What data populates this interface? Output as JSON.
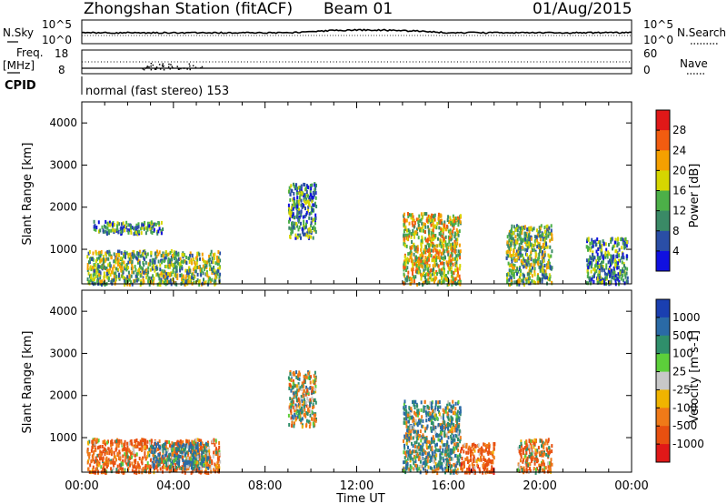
{
  "header": {
    "station": "Zhongshan Station (fitACF)",
    "beam": "Beam 01",
    "date": "01/Aug/2015"
  },
  "noise_panel": {
    "left_label": "N.Sky",
    "right_label": "N.Search",
    "left_ticks": [
      "10^5",
      "10^0"
    ],
    "right_ticks": [
      "10^5",
      "10^0"
    ]
  },
  "freq_panel": {
    "left_label_top": "Freq.",
    "left_label_unit": "[MHz]",
    "right_label": "Nave",
    "left_ticks": [
      "18",
      "8"
    ],
    "right_ticks": [
      "60",
      "0"
    ]
  },
  "cpid_panel": {
    "label": "CPID",
    "text": "normal (fast stereo) 153"
  },
  "axes": {
    "ylabel": "Slant Range [km]",
    "yticks": [
      "4000",
      "3000",
      "2000",
      "1000"
    ],
    "xticks": [
      "00:00",
      "04:00",
      "08:00",
      "12:00",
      "16:00",
      "20:00",
      "00:00"
    ],
    "xlabel": "Time UT"
  },
  "power_scale": {
    "title": "Power [dB]",
    "ticks": [
      "28",
      "24",
      "20",
      "16",
      "12",
      "8",
      "4"
    ],
    "colors": [
      "#e01818",
      "#f25c10",
      "#f5a000",
      "#d6d600",
      "#4cb048",
      "#3a8a66",
      "#2a4ea6",
      "#1010e0"
    ]
  },
  "velocity_scale": {
    "title": "Velocity [m s-1]",
    "ticks": [
      "1000",
      "500",
      "100",
      "25",
      "-25",
      "-100",
      "-500",
      "-1000"
    ],
    "colors": [
      "#1a3fb0",
      "#2a6aa6",
      "#2f8f6b",
      "#5ccf3a",
      "#c8c8c8",
      "#f0b400",
      "#f07a18",
      "#e85010",
      "#e01818"
    ]
  },
  "chart_data": [
    {
      "type": "heatmap",
      "title": "Power [dB]",
      "xlabel": "Time UT",
      "ylabel": "Slant Range [km]",
      "xlim": [
        "00:00",
        "24:00"
      ],
      "ylim": [
        180,
        4500
      ],
      "colorbar_range": [
        0,
        30
      ],
      "echo_regions": [
        {
          "t_start": 0.2,
          "t_end": 6.0,
          "range_start": 200,
          "range_end": 1000,
          "value": 12
        },
        {
          "t_start": 0.5,
          "t_end": 3.5,
          "range_start": 1400,
          "range_end": 1700,
          "value": 8
        },
        {
          "t_start": 9.0,
          "t_end": 10.2,
          "range_start": 1300,
          "range_end": 2600,
          "value": 8
        },
        {
          "t_start": 14.0,
          "t_end": 16.5,
          "range_start": 200,
          "range_end": 1900,
          "value": 16
        },
        {
          "t_start": 18.5,
          "t_end": 20.5,
          "range_start": 200,
          "range_end": 1600,
          "value": 12
        },
        {
          "t_start": 22.0,
          "t_end": 23.8,
          "range_start": 200,
          "range_end": 1300,
          "value": 8
        }
      ]
    },
    {
      "type": "heatmap",
      "title": "Velocity [m s-1]",
      "xlabel": "Time UT",
      "ylabel": "Slant Range [km]",
      "xlim": [
        "00:00",
        "24:00"
      ],
      "ylim": [
        180,
        4500
      ],
      "colorbar_range": [
        -1000,
        1000
      ],
      "echo_regions": [
        {
          "t_start": 0.2,
          "t_end": 6.0,
          "range_start": 200,
          "range_end": 1000,
          "value": -300
        },
        {
          "t_start": 3.0,
          "t_end": 5.5,
          "range_start": 300,
          "range_end": 900,
          "value": 300
        },
        {
          "t_start": 9.0,
          "t_end": 10.2,
          "range_start": 1300,
          "range_end": 2600,
          "value": 0
        },
        {
          "t_start": 14.0,
          "t_end": 16.5,
          "range_start": 200,
          "range_end": 1900,
          "value": 150
        },
        {
          "t_start": 16.5,
          "t_end": 18.0,
          "range_start": 200,
          "range_end": 900,
          "value": -400
        },
        {
          "t_start": 19.0,
          "t_end": 20.5,
          "range_start": 200,
          "range_end": 1000,
          "value": -200
        }
      ]
    }
  ]
}
